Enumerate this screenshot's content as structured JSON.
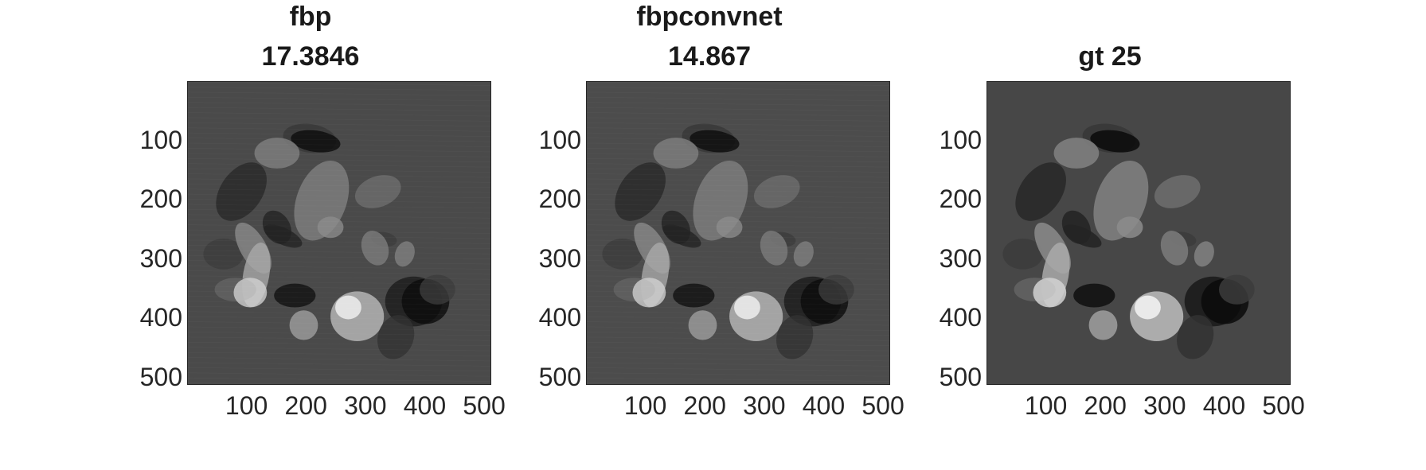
{
  "panels": [
    {
      "title_line1": "fbp",
      "title_line2": "17.3846",
      "background": "#4a4a4a",
      "ticks_y": [
        "100",
        "200",
        "300",
        "400",
        "500"
      ],
      "ticks_x": [
        "100",
        "200",
        "300",
        "400",
        "500"
      ]
    },
    {
      "title_line1": "fbpconvnet",
      "title_line2": "14.867",
      "background": "#4c4c4c",
      "ticks_y": [
        "100",
        "200",
        "300",
        "400",
        "500"
      ],
      "ticks_x": [
        "100",
        "200",
        "300",
        "400",
        "500"
      ]
    },
    {
      "title_line1": "",
      "title_line2": "gt 25",
      "background": "#474747",
      "ticks_y": [
        "100",
        "200",
        "300",
        "400",
        "500"
      ],
      "ticks_x": [
        "100",
        "200",
        "300",
        "400",
        "500"
      ]
    }
  ]
}
